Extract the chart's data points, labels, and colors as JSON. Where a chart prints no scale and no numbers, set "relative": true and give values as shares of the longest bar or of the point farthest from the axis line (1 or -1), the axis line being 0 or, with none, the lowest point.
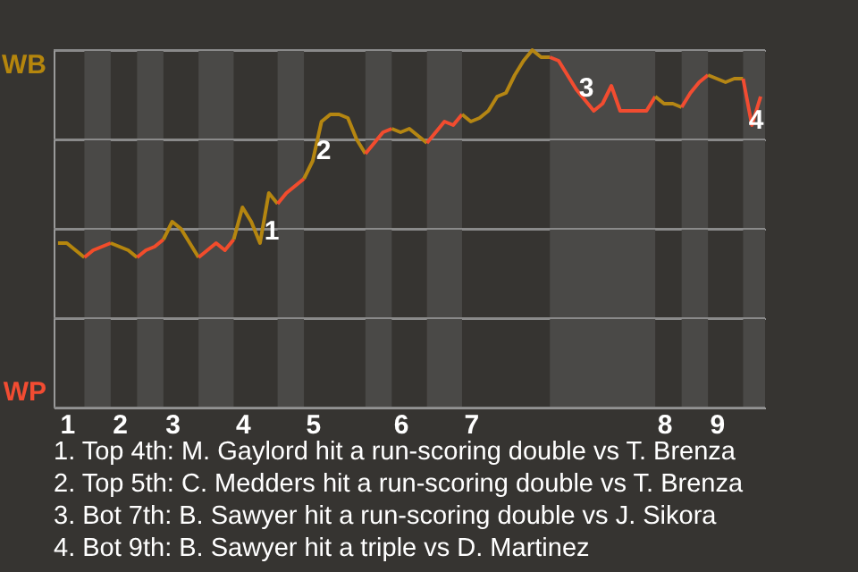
{
  "chart_data": {
    "type": "line",
    "relative": true,
    "categories": [
      null,
      "1",
      null,
      null,
      null,
      null,
      null,
      "2",
      null,
      null,
      null,
      null,
      null,
      "3",
      null,
      null,
      null,
      null,
      null,
      null,
      null,
      "4",
      null,
      null,
      null,
      null,
      null,
      null,
      null,
      "5",
      null,
      null,
      null,
      null,
      null,
      null,
      null,
      null,
      null,
      "6",
      null,
      null,
      null,
      null,
      null,
      null,
      null,
      "7",
      null,
      null,
      null,
      null,
      null,
      null,
      null,
      null,
      null,
      null,
      null,
      null,
      null,
      null,
      null,
      null,
      null,
      null,
      null,
      null,
      null,
      "8",
      null,
      null,
      null,
      null,
      null,
      "9",
      null,
      null,
      null,
      null,
      null
    ],
    "series": [
      {
        "color": "#b5860d",
        "values": [
          0.46,
          0.46,
          0.44,
          0.42,
          null,
          null,
          null,
          null,
          null,
          null,
          null,
          null,
          null,
          null,
          null,
          null,
          null,
          null,
          null,
          null,
          null,
          null,
          null,
          null,
          null,
          null,
          null,
          null,
          null,
          null,
          null,
          null,
          null,
          null,
          null,
          null,
          null,
          null,
          null,
          null,
          null,
          null,
          null,
          null,
          null,
          null,
          null,
          null,
          null,
          null,
          null,
          null,
          null,
          null,
          null,
          null,
          null,
          null,
          null,
          null,
          null,
          null,
          null,
          null,
          null,
          null,
          null,
          null,
          null,
          null,
          null,
          null,
          null,
          null,
          null,
          null,
          null,
          null,
          null,
          null,
          null
        ]
      },
      {
        "color": "#f24c2a",
        "values": [
          null,
          null,
          null,
          0.42,
          0.44,
          0.45,
          0.46,
          null,
          null,
          null,
          null,
          null,
          null,
          null,
          null,
          null,
          null,
          null,
          null,
          null,
          null,
          null,
          null,
          null,
          null,
          null,
          null,
          null,
          null,
          null,
          null,
          null,
          null,
          null,
          null,
          null,
          null,
          null,
          null,
          null,
          null,
          null,
          null,
          null,
          null,
          null,
          null,
          null,
          null,
          null,
          null,
          null,
          null,
          null,
          null,
          null,
          null,
          null,
          null,
          null,
          null,
          null,
          null,
          null,
          null,
          null,
          null,
          null,
          null,
          null,
          null,
          null,
          null,
          null,
          null,
          null,
          null,
          null,
          null,
          null,
          null
        ]
      },
      {
        "color": "#b5860e",
        "values": [
          null,
          null,
          null,
          null,
          null,
          null,
          0.46,
          0.45,
          0.44,
          0.42,
          null,
          null,
          null,
          null,
          null,
          null,
          null,
          null,
          null,
          null,
          null,
          null,
          null,
          null,
          null,
          null,
          null,
          null,
          null,
          null,
          null,
          null,
          null,
          null,
          null,
          null,
          null,
          null,
          null,
          null,
          null,
          null,
          null,
          null,
          null,
          null,
          null,
          null,
          null,
          null,
          null,
          null,
          null,
          null,
          null,
          null,
          null,
          null,
          null,
          null,
          null,
          null,
          null,
          null,
          null,
          null,
          null,
          null,
          null,
          null,
          null,
          null,
          null,
          null,
          null,
          null,
          null,
          null,
          null,
          null,
          null
        ]
      },
      {
        "color": "#f24c2b",
        "values": [
          null,
          null,
          null,
          null,
          null,
          null,
          null,
          null,
          null,
          0.42,
          0.44,
          0.45,
          0.47,
          null,
          null,
          null,
          null,
          null,
          null,
          null,
          null,
          null,
          null,
          null,
          null,
          null,
          null,
          null,
          null,
          null,
          null,
          null,
          null,
          null,
          null,
          null,
          null,
          null,
          null,
          null,
          null,
          null,
          null,
          null,
          null,
          null,
          null,
          null,
          null,
          null,
          null,
          null,
          null,
          null,
          null,
          null,
          null,
          null,
          null,
          null,
          null,
          null,
          null,
          null,
          null,
          null,
          null,
          null,
          null,
          null,
          null,
          null,
          null,
          null,
          null,
          null,
          null,
          null,
          null,
          null,
          null
        ]
      },
      {
        "color": "#b5860f",
        "values": [
          null,
          null,
          null,
          null,
          null,
          null,
          null,
          null,
          null,
          null,
          null,
          null,
          0.47,
          0.52,
          0.5,
          0.46,
          0.42,
          null,
          null,
          null,
          null,
          null,
          null,
          null,
          null,
          null,
          null,
          null,
          null,
          null,
          null,
          null,
          null,
          null,
          null,
          null,
          null,
          null,
          null,
          null,
          null,
          null,
          null,
          null,
          null,
          null,
          null,
          null,
          null,
          null,
          null,
          null,
          null,
          null,
          null,
          null,
          null,
          null,
          null,
          null,
          null,
          null,
          null,
          null,
          null,
          null,
          null,
          null,
          null,
          null,
          null,
          null,
          null,
          null,
          null,
          null,
          null,
          null,
          null,
          null,
          null
        ]
      },
      {
        "color": "#f24c2c",
        "values": [
          null,
          null,
          null,
          null,
          null,
          null,
          null,
          null,
          null,
          null,
          null,
          null,
          null,
          null,
          null,
          null,
          0.42,
          0.44,
          0.46,
          0.44,
          0.47,
          null,
          null,
          null,
          null,
          null,
          null,
          null,
          null,
          null,
          null,
          null,
          null,
          null,
          null,
          null,
          null,
          null,
          null,
          null,
          null,
          null,
          null,
          null,
          null,
          null,
          null,
          null,
          null,
          null,
          null,
          null,
          null,
          null,
          null,
          null,
          null,
          null,
          null,
          null,
          null,
          null,
          null,
          null,
          null,
          null,
          null,
          null,
          null,
          null,
          null,
          null,
          null,
          null,
          null,
          null,
          null,
          null,
          null,
          null,
          null
        ]
      },
      {
        "color": "#b58610",
        "values": [
          null,
          null,
          null,
          null,
          null,
          null,
          null,
          null,
          null,
          null,
          null,
          null,
          null,
          null,
          null,
          null,
          null,
          null,
          null,
          null,
          0.47,
          0.56,
          0.52,
          0.46,
          0.6,
          0.57,
          null,
          null,
          null,
          null,
          null,
          null,
          null,
          null,
          null,
          null,
          null,
          null,
          null,
          null,
          null,
          null,
          null,
          null,
          null,
          null,
          null,
          null,
          null,
          null,
          null,
          null,
          null,
          null,
          null,
          null,
          null,
          null,
          null,
          null,
          null,
          null,
          null,
          null,
          null,
          null,
          null,
          null,
          null,
          null,
          null,
          null,
          null,
          null,
          null,
          null,
          null,
          null,
          null,
          null,
          null
        ]
      },
      {
        "color": "#f24c2d",
        "values": [
          null,
          null,
          null,
          null,
          null,
          null,
          null,
          null,
          null,
          null,
          null,
          null,
          null,
          null,
          null,
          null,
          null,
          null,
          null,
          null,
          null,
          null,
          null,
          null,
          null,
          0.57,
          0.6,
          0.62,
          0.64,
          null,
          null,
          null,
          null,
          null,
          null,
          null,
          null,
          null,
          null,
          null,
          null,
          null,
          null,
          null,
          null,
          null,
          null,
          null,
          null,
          null,
          null,
          null,
          null,
          null,
          null,
          null,
          null,
          null,
          null,
          null,
          null,
          null,
          null,
          null,
          null,
          null,
          null,
          null,
          null,
          null,
          null,
          null,
          null,
          null,
          null,
          null,
          null,
          null,
          null,
          null,
          null
        ]
      },
      {
        "color": "#b58611",
        "values": [
          null,
          null,
          null,
          null,
          null,
          null,
          null,
          null,
          null,
          null,
          null,
          null,
          null,
          null,
          null,
          null,
          null,
          null,
          null,
          null,
          null,
          null,
          null,
          null,
          null,
          null,
          null,
          null,
          0.64,
          0.69,
          0.8,
          0.82,
          0.82,
          0.81,
          0.75,
          0.71,
          null,
          null,
          null,
          null,
          null,
          null,
          null,
          null,
          null,
          null,
          null,
          null,
          null,
          null,
          null,
          null,
          null,
          null,
          null,
          null,
          null,
          null,
          null,
          null,
          null,
          null,
          null,
          null,
          null,
          null,
          null,
          null,
          null,
          null,
          null,
          null,
          null,
          null,
          null,
          null,
          null,
          null,
          null,
          null,
          null
        ]
      },
      {
        "color": "#f24c2e",
        "values": [
          null,
          null,
          null,
          null,
          null,
          null,
          null,
          null,
          null,
          null,
          null,
          null,
          null,
          null,
          null,
          null,
          null,
          null,
          null,
          null,
          null,
          null,
          null,
          null,
          null,
          null,
          null,
          null,
          null,
          null,
          null,
          null,
          null,
          null,
          null,
          0.71,
          0.74,
          0.77,
          0.78,
          null,
          null,
          null,
          null,
          null,
          null,
          null,
          null,
          null,
          null,
          null,
          null,
          null,
          null,
          null,
          null,
          null,
          null,
          null,
          null,
          null,
          null,
          null,
          null,
          null,
          null,
          null,
          null,
          null,
          null,
          null,
          null,
          null,
          null,
          null,
          null,
          null,
          null,
          null,
          null,
          null,
          null
        ]
      },
      {
        "color": "#b58612",
        "values": [
          null,
          null,
          null,
          null,
          null,
          null,
          null,
          null,
          null,
          null,
          null,
          null,
          null,
          null,
          null,
          null,
          null,
          null,
          null,
          null,
          null,
          null,
          null,
          null,
          null,
          null,
          null,
          null,
          null,
          null,
          null,
          null,
          null,
          null,
          null,
          null,
          null,
          null,
          0.78,
          0.77,
          0.78,
          0.76,
          0.74,
          null,
          null,
          null,
          null,
          null,
          null,
          null,
          null,
          null,
          null,
          null,
          null,
          null,
          null,
          null,
          null,
          null,
          null,
          null,
          null,
          null,
          null,
          null,
          null,
          null,
          null,
          null,
          null,
          null,
          null,
          null,
          null,
          null,
          null,
          null,
          null,
          null,
          null
        ]
      },
      {
        "color": "#f24c2f",
        "values": [
          null,
          null,
          null,
          null,
          null,
          null,
          null,
          null,
          null,
          null,
          null,
          null,
          null,
          null,
          null,
          null,
          null,
          null,
          null,
          null,
          null,
          null,
          null,
          null,
          null,
          null,
          null,
          null,
          null,
          null,
          null,
          null,
          null,
          null,
          null,
          null,
          null,
          null,
          null,
          null,
          null,
          null,
          0.74,
          0.77,
          0.8,
          0.79,
          0.82,
          null,
          null,
          null,
          null,
          null,
          null,
          null,
          null,
          null,
          null,
          null,
          null,
          null,
          null,
          null,
          null,
          null,
          null,
          null,
          null,
          null,
          null,
          null,
          null,
          null,
          null,
          null,
          null,
          null,
          null,
          null,
          null,
          null,
          null
        ]
      },
      {
        "color": "#b58613",
        "values": [
          null,
          null,
          null,
          null,
          null,
          null,
          null,
          null,
          null,
          null,
          null,
          null,
          null,
          null,
          null,
          null,
          null,
          null,
          null,
          null,
          null,
          null,
          null,
          null,
          null,
          null,
          null,
          null,
          null,
          null,
          null,
          null,
          null,
          null,
          null,
          null,
          null,
          null,
          null,
          null,
          null,
          null,
          null,
          null,
          null,
          null,
          0.82,
          0.8,
          0.81,
          0.83,
          0.87,
          0.88,
          0.93,
          0.97,
          1.0,
          0.98,
          0.98,
          null,
          null,
          null,
          null,
          null,
          null,
          null,
          null,
          null,
          null,
          null,
          null,
          null,
          null,
          null,
          null,
          null,
          null,
          null,
          null,
          null,
          null,
          null,
          null
        ]
      },
      {
        "color": "#f24c30",
        "values": [
          null,
          null,
          null,
          null,
          null,
          null,
          null,
          null,
          null,
          null,
          null,
          null,
          null,
          null,
          null,
          null,
          null,
          null,
          null,
          null,
          null,
          null,
          null,
          null,
          null,
          null,
          null,
          null,
          null,
          null,
          null,
          null,
          null,
          null,
          null,
          null,
          null,
          null,
          null,
          null,
          null,
          null,
          null,
          null,
          null,
          null,
          null,
          null,
          null,
          null,
          null,
          null,
          null,
          null,
          null,
          null,
          0.98,
          0.97,
          0.93,
          0.89,
          0.86,
          0.83,
          0.85,
          0.9,
          0.83,
          0.83,
          0.83,
          0.83,
          0.87,
          null,
          null,
          null,
          null,
          null,
          null,
          null,
          null,
          null,
          null,
          null,
          null
        ]
      },
      {
        "color": "#b58614",
        "values": [
          null,
          null,
          null,
          null,
          null,
          null,
          null,
          null,
          null,
          null,
          null,
          null,
          null,
          null,
          null,
          null,
          null,
          null,
          null,
          null,
          null,
          null,
          null,
          null,
          null,
          null,
          null,
          null,
          null,
          null,
          null,
          null,
          null,
          null,
          null,
          null,
          null,
          null,
          null,
          null,
          null,
          null,
          null,
          null,
          null,
          null,
          null,
          null,
          null,
          null,
          null,
          null,
          null,
          null,
          null,
          null,
          null,
          null,
          null,
          null,
          null,
          null,
          null,
          null,
          null,
          null,
          null,
          null,
          0.87,
          0.85,
          0.85,
          0.84,
          null,
          null,
          null,
          null,
          null,
          null,
          null,
          null,
          null
        ]
      },
      {
        "color": "#f24c31",
        "values": [
          null,
          null,
          null,
          null,
          null,
          null,
          null,
          null,
          null,
          null,
          null,
          null,
          null,
          null,
          null,
          null,
          null,
          null,
          null,
          null,
          null,
          null,
          null,
          null,
          null,
          null,
          null,
          null,
          null,
          null,
          null,
          null,
          null,
          null,
          null,
          null,
          null,
          null,
          null,
          null,
          null,
          null,
          null,
          null,
          null,
          null,
          null,
          null,
          null,
          null,
          null,
          null,
          null,
          null,
          null,
          null,
          null,
          null,
          null,
          null,
          null,
          null,
          null,
          null,
          null,
          null,
          null,
          null,
          null,
          null,
          null,
          0.84,
          0.88,
          0.91,
          0.93,
          null,
          null,
          null,
          null,
          null,
          null
        ]
      },
      {
        "color": "#b58615",
        "values": [
          null,
          null,
          null,
          null,
          null,
          null,
          null,
          null,
          null,
          null,
          null,
          null,
          null,
          null,
          null,
          null,
          null,
          null,
          null,
          null,
          null,
          null,
          null,
          null,
          null,
          null,
          null,
          null,
          null,
          null,
          null,
          null,
          null,
          null,
          null,
          null,
          null,
          null,
          null,
          null,
          null,
          null,
          null,
          null,
          null,
          null,
          null,
          null,
          null,
          null,
          null,
          null,
          null,
          null,
          null,
          null,
          null,
          null,
          null,
          null,
          null,
          null,
          null,
          null,
          null,
          null,
          null,
          null,
          null,
          null,
          null,
          null,
          null,
          null,
          0.93,
          0.92,
          0.91,
          0.92,
          0.92,
          null,
          null
        ]
      },
      {
        "color": "#f24c32",
        "values": [
          null,
          null,
          null,
          null,
          null,
          null,
          null,
          null,
          null,
          null,
          null,
          null,
          null,
          null,
          null,
          null,
          null,
          null,
          null,
          null,
          null,
          null,
          null,
          null,
          null,
          null,
          null,
          null,
          null,
          null,
          null,
          null,
          null,
          null,
          null,
          null,
          null,
          null,
          null,
          null,
          null,
          null,
          null,
          null,
          null,
          null,
          null,
          null,
          null,
          null,
          null,
          null,
          null,
          null,
          null,
          null,
          null,
          null,
          null,
          null,
          null,
          null,
          null,
          null,
          null,
          null,
          null,
          null,
          null,
          null,
          null,
          null,
          null,
          null,
          null,
          null,
          null,
          null,
          0.92,
          0.79,
          0.87
        ]
      }
    ],
    "grid": "y",
    "annotations": [
      "WB",
      "WP",
      "1",
      "2",
      "3",
      "4",
      "1. Top 4th: M. Gaylord hit a run-scoring double vs T. Brenza",
      "2. Top 5th: C. Medders hit a run-scoring double vs T. Brenza",
      "3. Bot 7th: B. Sawyer hit a run-scoring double vs J. Sikora",
      "4. Bot 9th: B. Sawyer hit a triple vs D. Martinez"
    ]
  }
}
